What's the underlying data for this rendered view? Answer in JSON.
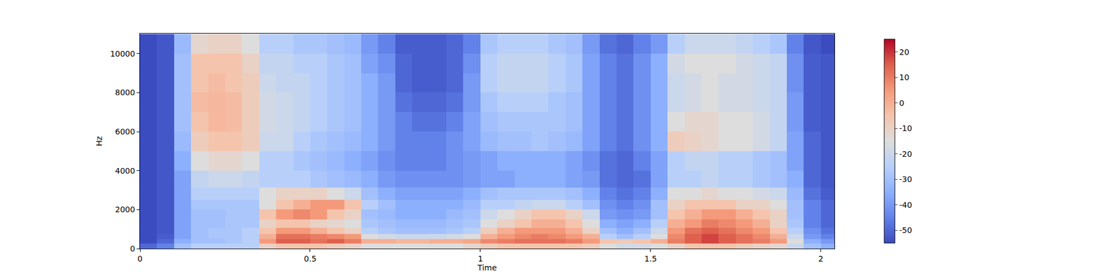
{
  "chart_data": {
    "type": "heatmap",
    "x_label": "Time",
    "y_label": "Hz",
    "x": [
      0.025,
      0.075,
      0.125,
      0.175,
      0.225,
      0.275,
      0.325,
      0.375,
      0.425,
      0.475,
      0.525,
      0.575,
      0.625,
      0.675,
      0.725,
      0.775,
      0.825,
      0.875,
      0.925,
      0.975,
      1.025,
      1.075,
      1.125,
      1.175,
      1.225,
      1.275,
      1.325,
      1.375,
      1.425,
      1.475,
      1.525,
      1.575,
      1.625,
      1.675,
      1.725,
      1.775,
      1.825,
      1.875,
      1.925,
      1.975,
      2.025
    ],
    "y": [
      125,
      375,
      625,
      875,
      1250,
      1750,
      2250,
      2750,
      3500,
      4500,
      5500,
      6500,
      7500,
      8500,
      9500,
      10500
    ],
    "cells": [
      [
        -50,
        -45,
        -30,
        -25,
        -25,
        -25,
        -25,
        -10,
        -5,
        -5,
        -5,
        -8,
        -10,
        -15,
        -15,
        -15,
        -15,
        -15,
        -15,
        -12,
        -8,
        -5,
        -5,
        -5,
        -5,
        -5,
        -8,
        -15,
        -18,
        -18,
        -15,
        -10,
        -5,
        -5,
        -5,
        -8,
        -10,
        -12,
        -20,
        -30,
        -35
      ],
      [
        -55,
        -50,
        -35,
        -30,
        -30,
        -28,
        -25,
        5,
        15,
        15,
        12,
        15,
        10,
        0,
        0,
        -2,
        -2,
        0,
        0,
        2,
        8,
        10,
        12,
        12,
        12,
        10,
        5,
        -5,
        -8,
        -5,
        0,
        10,
        15,
        18,
        15,
        12,
        10,
        5,
        -15,
        -35,
        -40
      ],
      [
        -55,
        -52,
        -38,
        -30,
        -28,
        -28,
        -25,
        0,
        12,
        12,
        10,
        8,
        5,
        -15,
        -18,
        -20,
        -20,
        -20,
        -18,
        -15,
        0,
        5,
        8,
        10,
        8,
        5,
        0,
        -25,
        -30,
        -25,
        -15,
        8,
        15,
        18,
        15,
        12,
        8,
        0,
        -20,
        -40,
        -45
      ],
      [
        -55,
        -53,
        -38,
        -30,
        -28,
        -28,
        -25,
        -5,
        5,
        5,
        0,
        -5,
        -10,
        -25,
        -28,
        -30,
        -30,
        -30,
        -28,
        -25,
        -8,
        0,
        5,
        5,
        5,
        0,
        -10,
        -30,
        -35,
        -30,
        -20,
        5,
        12,
        15,
        12,
        8,
        5,
        -5,
        -25,
        -42,
        -48
      ],
      [
        -55,
        -53,
        -38,
        -30,
        -30,
        -28,
        -28,
        -10,
        -5,
        -5,
        -10,
        -12,
        -15,
        -28,
        -30,
        -32,
        -32,
        -32,
        -30,
        -28,
        -15,
        -10,
        -5,
        0,
        0,
        -5,
        -15,
        -35,
        -38,
        -35,
        -25,
        0,
        5,
        10,
        8,
        5,
        0,
        -10,
        -28,
        -45,
        -50
      ],
      [
        -55,
        -53,
        -38,
        -30,
        -30,
        -28,
        -28,
        -5,
        5,
        8,
        5,
        -5,
        -10,
        -30,
        -32,
        -35,
        -35,
        -35,
        -32,
        -30,
        -20,
        -15,
        -10,
        -5,
        -5,
        -10,
        -20,
        -40,
        -42,
        -40,
        -30,
        -5,
        0,
        5,
        5,
        0,
        -5,
        -10,
        -30,
        -45,
        -50
      ],
      [
        -55,
        -53,
        -38,
        -28,
        -28,
        -28,
        -28,
        -15,
        -5,
        0,
        5,
        5,
        -5,
        -25,
        -30,
        -35,
        -35,
        -35,
        -35,
        -32,
        -25,
        -25,
        -22,
        -20,
        -20,
        -25,
        -30,
        -42,
        -45,
        -42,
        -30,
        -10,
        -5,
        -5,
        -5,
        -10,
        -10,
        -15,
        -30,
        -45,
        -50
      ],
      [
        -55,
        -53,
        -38,
        -25,
        -25,
        -25,
        -25,
        -15,
        -10,
        -10,
        -10,
        -15,
        -20,
        -30,
        -35,
        -38,
        -38,
        -38,
        -38,
        -35,
        -30,
        -28,
        -28,
        -28,
        -28,
        -30,
        -35,
        -45,
        -48,
        -45,
        -35,
        -15,
        -15,
        -12,
        -15,
        -15,
        -18,
        -20,
        -32,
        -48,
        -52
      ],
      [
        -55,
        -53,
        -38,
        -22,
        -20,
        -20,
        -22,
        -25,
        -25,
        -25,
        -28,
        -30,
        -32,
        -35,
        -40,
        -42,
        -42,
        -42,
        -42,
        -40,
        -38,
        -38,
        -35,
        -35,
        -35,
        -38,
        -40,
        -48,
        -50,
        -48,
        -38,
        -25,
        -25,
        -22,
        -25,
        -25,
        -28,
        -30,
        -35,
        -50,
        -53
      ],
      [
        -55,
        -53,
        -35,
        -15,
        -12,
        -12,
        -15,
        -25,
        -25,
        -28,
        -30,
        -32,
        -35,
        -38,
        -42,
        -45,
        -45,
        -45,
        -42,
        -40,
        -38,
        -35,
        -35,
        -35,
        -35,
        -38,
        -42,
        -48,
        -50,
        -45,
        -38,
        -25,
        -22,
        -22,
        -25,
        -25,
        -28,
        -30,
        -38,
        -50,
        -53
      ],
      [
        -55,
        -53,
        -32,
        -8,
        -5,
        -5,
        -8,
        -20,
        -20,
        -25,
        -28,
        -30,
        -32,
        -35,
        -40,
        -45,
        -45,
        -45,
        -42,
        -38,
        -32,
        -30,
        -30,
        -28,
        -30,
        -32,
        -38,
        -45,
        -48,
        -42,
        -35,
        -8,
        -10,
        -12,
        -15,
        -15,
        -18,
        -22,
        -38,
        -50,
        -53
      ],
      [
        -55,
        -53,
        -30,
        -5,
        -2,
        -3,
        -8,
        -18,
        -20,
        -22,
        -25,
        -28,
        -30,
        -35,
        -40,
        -45,
        -48,
        -48,
        -45,
        -38,
        -30,
        -28,
        -28,
        -28,
        -28,
        -30,
        -38,
        -45,
        -48,
        -42,
        -35,
        -15,
        -12,
        -12,
        -15,
        -15,
        -18,
        -22,
        -40,
        -52,
        -53
      ],
      [
        -55,
        -53,
        -30,
        -3,
        -2,
        -3,
        -8,
        -18,
        -20,
        -22,
        -25,
        -28,
        -30,
        -35,
        -40,
        -48,
        -50,
        -50,
        -48,
        -40,
        -28,
        -25,
        -25,
        -25,
        -28,
        -30,
        -38,
        -45,
        -48,
        -42,
        -35,
        -20,
        -18,
        -15,
        -18,
        -18,
        -20,
        -22,
        -40,
        -52,
        -53
      ],
      [
        -55,
        -53,
        -30,
        -5,
        -3,
        -5,
        -8,
        -20,
        -22,
        -22,
        -25,
        -28,
        -30,
        -35,
        -40,
        -50,
        -52,
        -52,
        -50,
        -40,
        -25,
        -22,
        -22,
        -22,
        -25,
        -28,
        -38,
        -45,
        -48,
        -42,
        -35,
        -20,
        -18,
        -15,
        -18,
        -18,
        -20,
        -22,
        -42,
        -52,
        -53
      ],
      [
        -55,
        -53,
        -30,
        -5,
        -5,
        -5,
        -10,
        -22,
        -22,
        -25,
        -25,
        -28,
        -30,
        -38,
        -42,
        -50,
        -52,
        -52,
        -50,
        -42,
        -25,
        -22,
        -22,
        -22,
        -25,
        -28,
        -38,
        -45,
        -48,
        -42,
        -35,
        -18,
        -15,
        -15,
        -15,
        -18,
        -20,
        -22,
        -42,
        -52,
        -53
      ],
      [
        -55,
        -53,
        -32,
        -12,
        -10,
        -10,
        -15,
        -25,
        -25,
        -28,
        -28,
        -30,
        -32,
        -40,
        -45,
        -52,
        -52,
        -52,
        -50,
        -45,
        -28,
        -25,
        -25,
        -25,
        -28,
        -30,
        -40,
        -48,
        -50,
        -45,
        -40,
        -25,
        -20,
        -20,
        -20,
        -22,
        -25,
        -28,
        -45,
        -53,
        -55
      ]
    ],
    "xlim": [
      0,
      2.04
    ],
    "ylim": [
      0,
      11025
    ],
    "xticks": [
      0,
      0.5,
      1,
      1.5,
      2
    ],
    "yticks": [
      0,
      2000,
      4000,
      6000,
      8000,
      10000
    ],
    "colorbar_range": [
      -55,
      25
    ],
    "colorbar_ticks": [
      -50,
      -40,
      -30,
      -20,
      -10,
      0,
      10,
      20
    ]
  }
}
